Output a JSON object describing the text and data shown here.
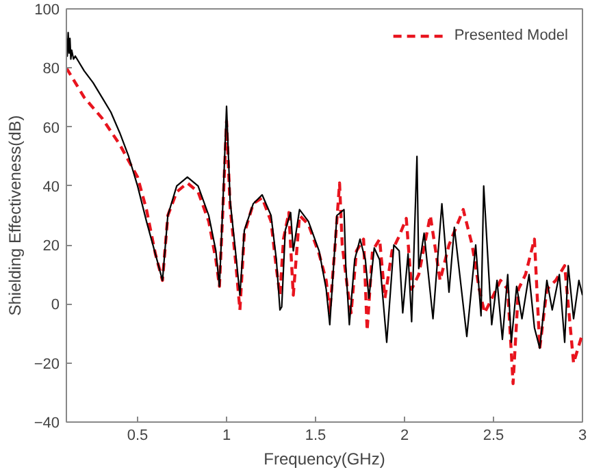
{
  "chart_data": {
    "type": "line",
    "xlabel": "Frequency(GHz)",
    "ylabel": "Shielding Effectiveness(dB)",
    "xlim": [
      0.1,
      3
    ],
    "ylim": [
      -40,
      100
    ],
    "xticks": [
      0.5,
      1,
      1.5,
      2,
      2.5,
      3
    ],
    "yticks": [
      -40,
      -20,
      0,
      20,
      40,
      60,
      80,
      100
    ],
    "grid": false,
    "legend": "top right",
    "series": [
      {
        "name": "Presented Model",
        "color": "#e8141e",
        "line_style": "dashed",
        "x": [
          0.1,
          0.15,
          0.2,
          0.3,
          0.4,
          0.5,
          0.55,
          0.6,
          0.64,
          0.67,
          0.72,
          0.78,
          0.84,
          0.9,
          0.94,
          0.96,
          0.98,
          1.0,
          1.02,
          1.05,
          1.075,
          1.1,
          1.15,
          1.2,
          1.25,
          1.28,
          1.3,
          1.32,
          1.35,
          1.375,
          1.41,
          1.46,
          1.52,
          1.56,
          1.58,
          1.61,
          1.635,
          1.65,
          1.68,
          1.7,
          1.73,
          1.77,
          1.79,
          1.82,
          1.86,
          1.89,
          1.93,
          1.97,
          2.01,
          2.04,
          2.08,
          2.145,
          2.2,
          2.25,
          2.33,
          2.38,
          2.42,
          2.45,
          2.5,
          2.54,
          2.58,
          2.61,
          2.64,
          2.68,
          2.73,
          2.76,
          2.8,
          2.85,
          2.9,
          2.95,
          3.0
        ],
        "values": [
          80,
          75,
          70,
          63,
          54,
          43,
          32,
          17,
          8,
          30,
          38,
          41,
          38,
          28,
          15,
          6,
          33,
          62,
          33,
          15,
          -2,
          24,
          34,
          36,
          28,
          12,
          3,
          22,
          31,
          3,
          30,
          27,
          17,
          8,
          -3,
          20,
          41,
          20,
          5,
          -3,
          18,
          22,
          -9,
          18,
          22,
          2,
          18,
          23,
          29,
          5,
          10,
          30,
          8,
          20,
          32,
          20,
          5,
          -3,
          3,
          8,
          5,
          -27,
          5,
          10,
          22,
          -15,
          5,
          8,
          13,
          -20,
          -10
        ]
      },
      {
        "color": "#000000",
        "line_style": "solid",
        "x": [
          0.1,
          0.105,
          0.11,
          0.115,
          0.12,
          0.125,
          0.13,
          0.14,
          0.15,
          0.2,
          0.25,
          0.3,
          0.35,
          0.4,
          0.45,
          0.5,
          0.55,
          0.6,
          0.64,
          0.67,
          0.72,
          0.78,
          0.84,
          0.9,
          0.94,
          0.96,
          0.98,
          1.0,
          1.02,
          1.05,
          1.075,
          1.1,
          1.15,
          1.2,
          1.25,
          1.28,
          1.3,
          1.31,
          1.33,
          1.36,
          1.375,
          1.41,
          1.46,
          1.52,
          1.56,
          1.58,
          1.62,
          1.66,
          1.67,
          1.69,
          1.72,
          1.75,
          1.78,
          1.8,
          1.83,
          1.86,
          1.9,
          1.94,
          1.97,
          1.99,
          2.02,
          2.04,
          2.07,
          2.08,
          2.11,
          2.16,
          2.21,
          2.25,
          2.28,
          2.35,
          2.4,
          2.43,
          2.445,
          2.49,
          2.52,
          2.55,
          2.58,
          2.6,
          2.63,
          2.66,
          2.7,
          2.73,
          2.76,
          2.8,
          2.83,
          2.87,
          2.9,
          2.92,
          2.95,
          2.98,
          3.0
        ],
        "values": [
          90,
          84,
          92,
          85,
          90,
          83,
          86,
          83,
          84,
          79,
          75,
          70,
          65,
          58,
          50,
          40,
          28,
          17,
          8,
          30,
          40,
          43,
          40,
          30,
          18,
          6,
          35,
          67,
          35,
          18,
          3,
          25,
          34,
          37,
          30,
          15,
          -2,
          -1,
          25,
          31,
          18,
          32,
          28,
          18,
          5,
          -7,
          30,
          32,
          13,
          -7,
          15,
          22,
          15,
          2,
          19,
          15,
          -13,
          20,
          18,
          -3,
          17,
          -6,
          50,
          12,
          24,
          -5,
          34,
          4,
          26,
          -11,
          20,
          -4,
          40,
          -7,
          8,
          -12,
          10,
          -13,
          6,
          -5,
          10,
          -8,
          -15,
          8,
          -2,
          10,
          -13,
          13,
          -5,
          8,
          3
        ]
      }
    ]
  }
}
